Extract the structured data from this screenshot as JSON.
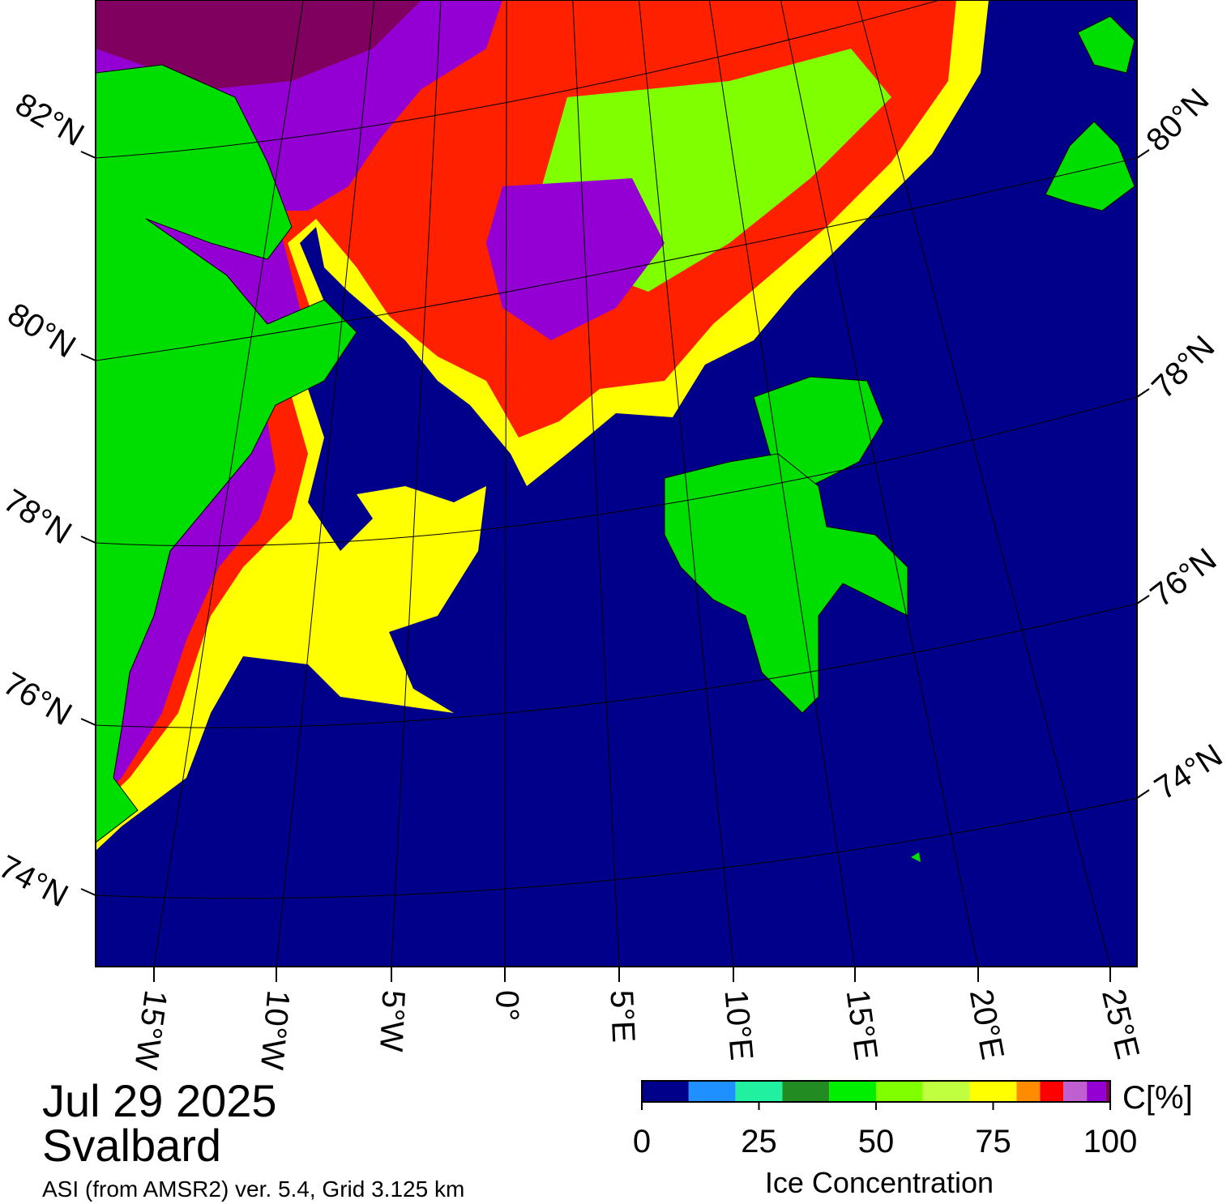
{
  "map": {
    "date": "Jul 29 2025",
    "region": "Svalbard",
    "source": "ASI (from AMSR2) ver. 5.4,  Grid 3.125 km",
    "lat_labels_left": [
      "82°N",
      "80°N",
      "78°N",
      "76°N",
      "74°N"
    ],
    "lat_labels_right": [
      "80°N",
      "78°N",
      "76°N",
      "74°N"
    ],
    "lon_labels": [
      "15°W",
      "10°W",
      "5°W",
      "0°",
      "5°E",
      "10°E",
      "15°E",
      "20°E",
      "25°E"
    ]
  },
  "colorbar": {
    "label": "Ice Concentration",
    "unit_label": "C[%]",
    "xlim": [
      0,
      100
    ],
    "xticks": [
      0,
      25,
      50,
      75,
      100
    ],
    "bins": [
      0,
      10,
      20,
      30,
      40,
      50,
      60,
      70,
      80,
      85,
      90,
      95,
      99,
      100
    ],
    "colors": [
      "#00008b",
      "#1e90ff",
      "#20f0a0",
      "#228b22",
      "#00ee00",
      "#7fff00",
      "#bfff3f",
      "#ffff00",
      "#ff8c00",
      "#ff0000",
      "#c060d0",
      "#9400d3",
      "#800060"
    ]
  }
}
